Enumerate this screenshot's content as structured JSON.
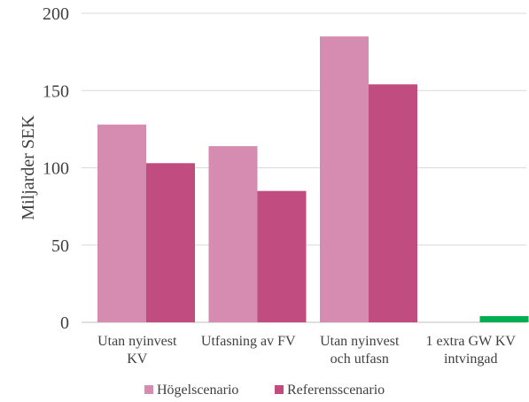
{
  "chart_data": {
    "type": "bar",
    "categories": [
      [
        "Utan nyinvest",
        "KV"
      ],
      [
        "Utfasning av FV"
      ],
      [
        "Utan nyinvest",
        "och utfasn"
      ],
      [
        "1 extra GW KV",
        "intvingad"
      ]
    ],
    "series": [
      {
        "name": "Högelscenario",
        "color": "#d68bb0",
        "values": [
          128,
          114,
          185,
          0
        ]
      },
      {
        "name": "Referensscenario",
        "color": "#c04c80",
        "values": [
          103,
          85,
          154,
          0
        ]
      }
    ],
    "extra_bars": [
      {
        "category_index": 3,
        "series_index": 1,
        "value": 4,
        "color": "#00b050"
      }
    ],
    "xlabel": "",
    "ylabel": "Miljarder SEK",
    "ylim": [
      0,
      200
    ],
    "yticks": [
      0,
      50,
      100,
      150,
      200
    ],
    "grid": true,
    "legend": "bottom"
  }
}
